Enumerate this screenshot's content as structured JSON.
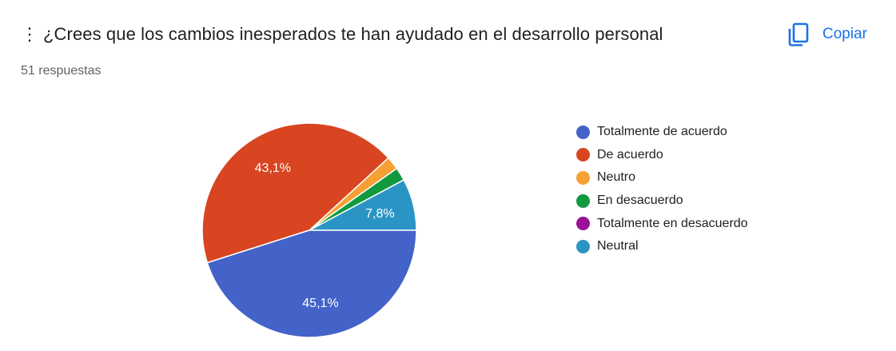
{
  "header": {
    "drag_handle": "⋮",
    "title": "¿Crees que los cambios inesperados te han ayudado en el desarrollo personal",
    "copy_label": "Copiar",
    "responses": "51 respuestas"
  },
  "chart_data": {
    "type": "pie",
    "total_responses": 51,
    "slices": [
      {
        "label": "Totalmente de acuerdo",
        "percent": 45.1,
        "display": "45,1%",
        "color": "#4363c9"
      },
      {
        "label": "De acuerdo",
        "percent": 43.1,
        "display": "43,1%",
        "color": "#d84520"
      },
      {
        "label": "Neutro",
        "percent": 2.0,
        "display": "",
        "color": "#f7a033"
      },
      {
        "label": "En desacuerdo",
        "percent": 2.0,
        "display": "",
        "color": "#119a3d"
      },
      {
        "label": "Totalmente en desacuerdo",
        "percent": 0,
        "display": "",
        "color": "#991199"
      },
      {
        "label": "Neutral",
        "percent": 7.8,
        "display": "7,8%",
        "color": "#2a95c4"
      }
    ],
    "slice_order": [
      5,
      3,
      2,
      1,
      0
    ],
    "legend_position": "right"
  }
}
